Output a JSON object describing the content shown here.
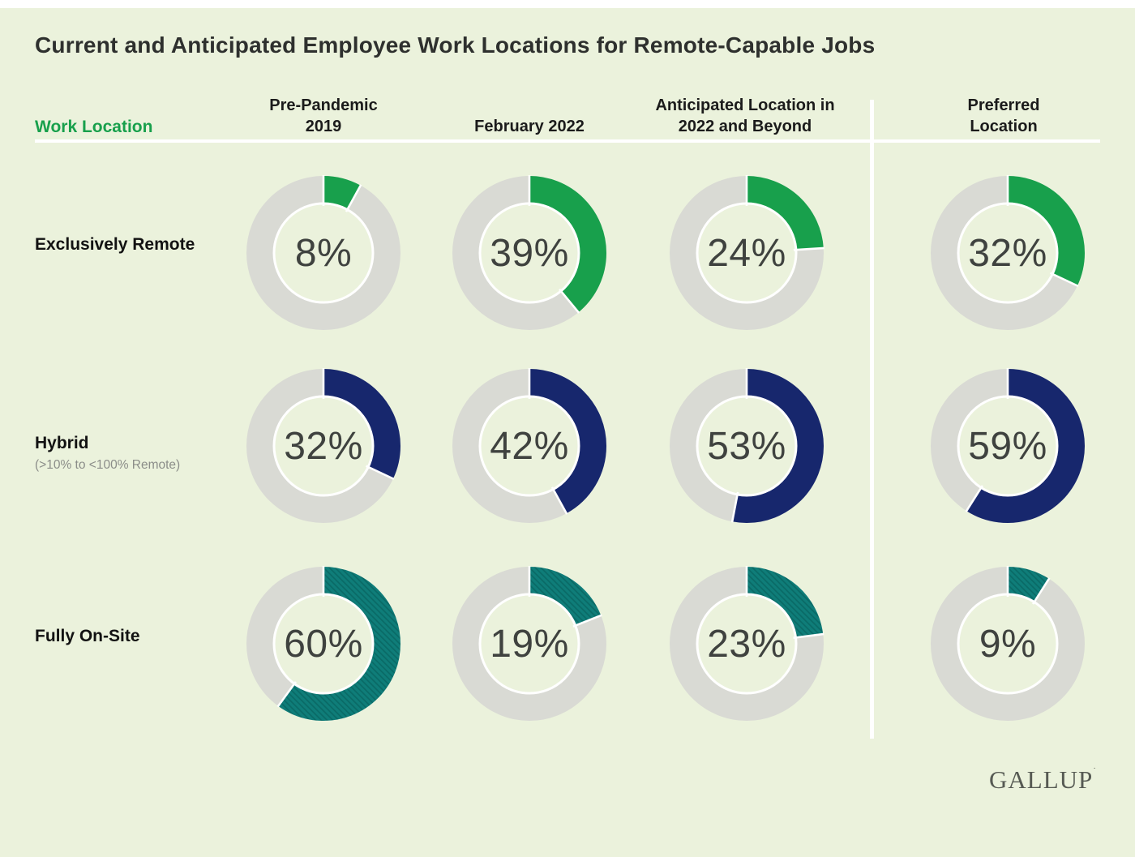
{
  "page": {
    "title": "Current and Anticipated Employee Work Locations for Remote-Capable Jobs",
    "corner_label": "Work Location",
    "logo_text": "GALLUP",
    "logo_mark": "˙"
  },
  "columns": [
    {
      "label": "Pre-Pandemic\n2019"
    },
    {
      "label": "February 2022"
    },
    {
      "label": "Anticipated Location in\n2022 and Beyond"
    },
    {
      "label": "Preferred Location"
    }
  ],
  "rows": [
    {
      "label": "Exclusively Remote",
      "sublabel": ""
    },
    {
      "label": "Hybrid",
      "sublabel": "(>10% to <100% Remote)"
    },
    {
      "label": "Fully On-Site",
      "sublabel": ""
    }
  ],
  "chart_data": {
    "type": "pie",
    "variant": "donut-grid",
    "title": "Current and Anticipated Employee Work Locations for Remote-Capable Jobs",
    "unit": "%",
    "start_angle": "top",
    "direction": "clockwise",
    "legend_position": "none",
    "categories": [
      "Pre-Pandemic 2019",
      "February 2022",
      "Anticipated Location in 2022 and Beyond",
      "Preferred Location"
    ],
    "series": [
      {
        "name": "Exclusively Remote",
        "color": "#18a04c",
        "pattern": "solid",
        "values": [
          8,
          39,
          24,
          32
        ]
      },
      {
        "name": "Hybrid (>10% to <100% Remote)",
        "color": "#17276d",
        "pattern": "solid",
        "values": [
          32,
          42,
          53,
          59
        ]
      },
      {
        "name": "Fully On-Site",
        "color": "#0f7d79",
        "pattern": "diagonal-hatch",
        "pattern_color": "#0a6a66",
        "values": [
          60,
          19,
          23,
          9
        ]
      }
    ],
    "ring_color": "#d9dad4",
    "value_label_color": "#3f423f",
    "background_color": "#ebf2dc"
  }
}
